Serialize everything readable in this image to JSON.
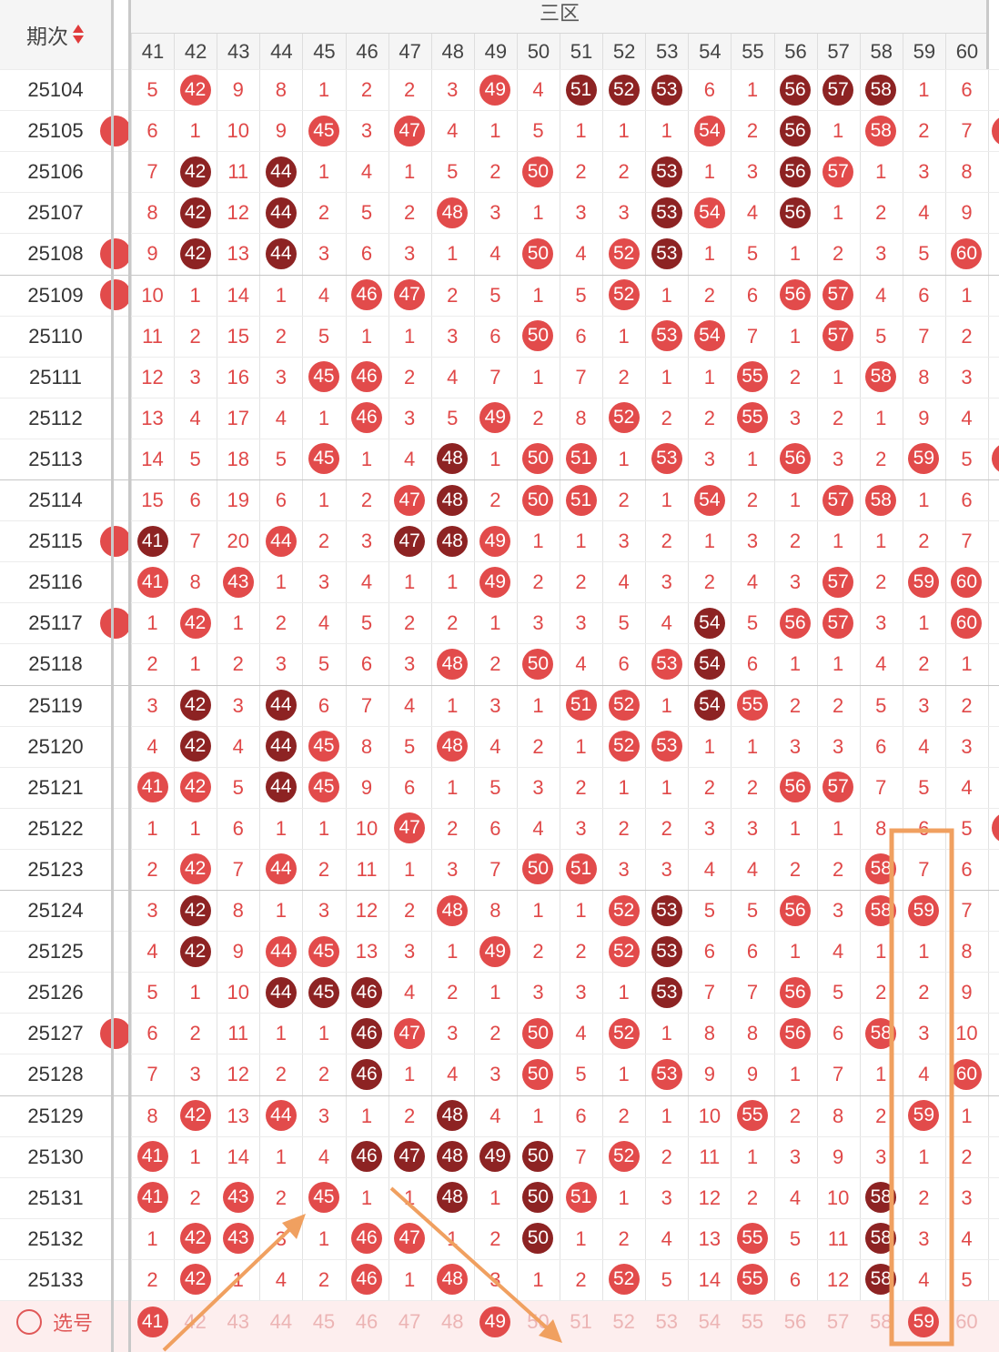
{
  "header": {
    "period_label": "期次",
    "zone_title": "三区",
    "columns": [
      "41",
      "42",
      "43",
      "44",
      "45",
      "46",
      "47",
      "48",
      "49",
      "50",
      "51",
      "52",
      "53",
      "54",
      "55",
      "56",
      "57",
      "58",
      "59",
      "60"
    ]
  },
  "colors": {
    "light_ball": "#e24b4b",
    "dark_ball": "#8d2323",
    "miss_text": "#e04848",
    "highlight": "#f0a060"
  },
  "rows": [
    {
      "period": "25104",
      "cells": [
        "5",
        "42",
        "9",
        "8",
        "1",
        "2",
        "2",
        "3",
        "49",
        "4",
        "51",
        "52",
        "53",
        "6",
        "1",
        "56",
        "57",
        "58",
        "1",
        "6"
      ],
      "dark": [
        "51",
        "52",
        "53",
        "56",
        "57",
        "58"
      ]
    },
    {
      "period": "25105",
      "cells": [
        "6",
        "1",
        "10",
        "9",
        "45",
        "3",
        "47",
        "4",
        "1",
        "5",
        "1",
        "1",
        "1",
        "54",
        "2",
        "56",
        "1",
        "58",
        "2",
        "7"
      ],
      "dark": [
        "56"
      ]
    },
    {
      "period": "25106",
      "cells": [
        "7",
        "42",
        "11",
        "44",
        "1",
        "4",
        "1",
        "5",
        "2",
        "50",
        "2",
        "2",
        "53",
        "1",
        "3",
        "56",
        "57",
        "1",
        "3",
        "8"
      ],
      "dark": [
        "42",
        "44",
        "53",
        "56"
      ]
    },
    {
      "period": "25107",
      "cells": [
        "8",
        "42",
        "12",
        "44",
        "2",
        "5",
        "2",
        "48",
        "3",
        "1",
        "3",
        "3",
        "53",
        "54",
        "4",
        "56",
        "1",
        "2",
        "4",
        "9"
      ],
      "dark": [
        "42",
        "44",
        "53",
        "56"
      ]
    },
    {
      "period": "25108",
      "cells": [
        "9",
        "42",
        "13",
        "44",
        "3",
        "6",
        "3",
        "1",
        "4",
        "50",
        "4",
        "52",
        "53",
        "1",
        "5",
        "1",
        "2",
        "3",
        "5",
        "60"
      ],
      "dark": [
        "42",
        "44",
        "53"
      ]
    },
    {
      "period": "25109",
      "cells": [
        "10",
        "1",
        "14",
        "1",
        "4",
        "46",
        "47",
        "2",
        "5",
        "1",
        "5",
        "52",
        "1",
        "2",
        "6",
        "56",
        "57",
        "4",
        "6",
        "1"
      ],
      "dark": []
    },
    {
      "period": "25110",
      "cells": [
        "11",
        "2",
        "15",
        "2",
        "5",
        "1",
        "1",
        "3",
        "6",
        "50",
        "6",
        "1",
        "53",
        "54",
        "7",
        "1",
        "57",
        "5",
        "7",
        "2"
      ],
      "dark": []
    },
    {
      "period": "25111",
      "cells": [
        "12",
        "3",
        "16",
        "3",
        "45",
        "46",
        "2",
        "4",
        "7",
        "1",
        "7",
        "2",
        "1",
        "1",
        "55",
        "2",
        "1",
        "58",
        "8",
        "3"
      ],
      "dark": []
    },
    {
      "period": "25112",
      "cells": [
        "13",
        "4",
        "17",
        "4",
        "1",
        "46",
        "3",
        "5",
        "49",
        "2",
        "8",
        "52",
        "2",
        "2",
        "55",
        "3",
        "2",
        "1",
        "9",
        "4"
      ],
      "dark": []
    },
    {
      "period": "25113",
      "cells": [
        "14",
        "5",
        "18",
        "5",
        "45",
        "1",
        "4",
        "48",
        "1",
        "50",
        "51",
        "1",
        "53",
        "3",
        "1",
        "56",
        "3",
        "2",
        "59",
        "5"
      ],
      "dark": [
        "48"
      ]
    },
    {
      "period": "25114",
      "cells": [
        "15",
        "6",
        "19",
        "6",
        "1",
        "2",
        "47",
        "48",
        "2",
        "50",
        "51",
        "2",
        "1",
        "54",
        "2",
        "1",
        "57",
        "58",
        "1",
        "6"
      ],
      "dark": [
        "48"
      ]
    },
    {
      "period": "25115",
      "cells": [
        "41",
        "7",
        "20",
        "44",
        "2",
        "3",
        "47",
        "48",
        "49",
        "1",
        "1",
        "3",
        "2",
        "1",
        "3",
        "2",
        "1",
        "1",
        "2",
        "7"
      ],
      "dark": [
        "41",
        "47",
        "48"
      ]
    },
    {
      "period": "25116",
      "cells": [
        "41",
        "8",
        "43",
        "1",
        "3",
        "4",
        "1",
        "1",
        "49",
        "2",
        "2",
        "4",
        "3",
        "2",
        "4",
        "3",
        "57",
        "2",
        "59",
        "60"
      ],
      "dark": []
    },
    {
      "period": "25117",
      "cells": [
        "1",
        "42",
        "1",
        "2",
        "4",
        "5",
        "2",
        "2",
        "1",
        "3",
        "3",
        "5",
        "4",
        "54",
        "5",
        "56",
        "57",
        "3",
        "1",
        "60"
      ],
      "dark": [
        "54"
      ]
    },
    {
      "period": "25118",
      "cells": [
        "2",
        "1",
        "2",
        "3",
        "5",
        "6",
        "3",
        "48",
        "2",
        "50",
        "4",
        "6",
        "53",
        "54",
        "6",
        "1",
        "1",
        "4",
        "2",
        "1"
      ],
      "dark": [
        "54"
      ]
    },
    {
      "period": "25119",
      "cells": [
        "3",
        "42",
        "3",
        "44",
        "6",
        "7",
        "4",
        "1",
        "3",
        "1",
        "51",
        "52",
        "1",
        "54",
        "55",
        "2",
        "2",
        "5",
        "3",
        "2"
      ],
      "dark": [
        "42",
        "44",
        "54"
      ]
    },
    {
      "period": "25120",
      "cells": [
        "4",
        "42",
        "4",
        "44",
        "45",
        "8",
        "5",
        "48",
        "4",
        "2",
        "1",
        "52",
        "53",
        "1",
        "1",
        "3",
        "3",
        "6",
        "4",
        "3"
      ],
      "dark": [
        "42",
        "44"
      ]
    },
    {
      "period": "25121",
      "cells": [
        "41",
        "42",
        "5",
        "44",
        "45",
        "9",
        "6",
        "1",
        "5",
        "3",
        "2",
        "1",
        "1",
        "2",
        "2",
        "56",
        "57",
        "7",
        "5",
        "4"
      ],
      "dark": [
        "44"
      ]
    },
    {
      "period": "25122",
      "cells": [
        "1",
        "1",
        "6",
        "1",
        "1",
        "10",
        "47",
        "2",
        "6",
        "4",
        "3",
        "2",
        "2",
        "3",
        "3",
        "1",
        "1",
        "8",
        "6",
        "5"
      ],
      "dark": []
    },
    {
      "period": "25123",
      "cells": [
        "2",
        "42",
        "7",
        "44",
        "2",
        "11",
        "1",
        "3",
        "7",
        "50",
        "51",
        "3",
        "3",
        "4",
        "4",
        "2",
        "2",
        "58",
        "7",
        "6"
      ],
      "dark": []
    },
    {
      "period": "25124",
      "cells": [
        "3",
        "42",
        "8",
        "1",
        "3",
        "12",
        "2",
        "48",
        "8",
        "1",
        "1",
        "52",
        "53",
        "5",
        "5",
        "56",
        "3",
        "58",
        "59",
        "7"
      ],
      "dark": [
        "42",
        "53"
      ]
    },
    {
      "period": "25125",
      "cells": [
        "4",
        "42",
        "9",
        "44",
        "45",
        "13",
        "3",
        "1",
        "49",
        "2",
        "2",
        "52",
        "53",
        "6",
        "6",
        "1",
        "4",
        "1",
        "1",
        "8"
      ],
      "dark": [
        "42",
        "53"
      ]
    },
    {
      "period": "25126",
      "cells": [
        "5",
        "1",
        "10",
        "44",
        "45",
        "46",
        "4",
        "2",
        "1",
        "3",
        "3",
        "1",
        "53",
        "7",
        "7",
        "56",
        "5",
        "2",
        "2",
        "9"
      ],
      "dark": [
        "44",
        "45",
        "46",
        "53"
      ]
    },
    {
      "period": "25127",
      "cells": [
        "6",
        "2",
        "11",
        "1",
        "1",
        "46",
        "47",
        "3",
        "2",
        "50",
        "4",
        "52",
        "1",
        "8",
        "8",
        "56",
        "6",
        "58",
        "3",
        "10"
      ],
      "dark": [
        "46"
      ]
    },
    {
      "period": "25128",
      "cells": [
        "7",
        "3",
        "12",
        "2",
        "2",
        "46",
        "1",
        "4",
        "3",
        "50",
        "5",
        "1",
        "53",
        "9",
        "9",
        "1",
        "7",
        "1",
        "4",
        "60"
      ],
      "dark": [
        "46"
      ]
    },
    {
      "period": "25129",
      "cells": [
        "8",
        "42",
        "13",
        "44",
        "3",
        "1",
        "2",
        "48",
        "4",
        "1",
        "6",
        "2",
        "1",
        "10",
        "55",
        "2",
        "8",
        "2",
        "59",
        "1"
      ],
      "dark": [
        "48"
      ]
    },
    {
      "period": "25130",
      "cells": [
        "41",
        "1",
        "14",
        "1",
        "4",
        "46",
        "47",
        "48",
        "49",
        "50",
        "7",
        "52",
        "2",
        "11",
        "1",
        "3",
        "9",
        "3",
        "1",
        "2"
      ],
      "dark": [
        "46",
        "47",
        "48",
        "49",
        "50"
      ]
    },
    {
      "period": "25131",
      "cells": [
        "41",
        "2",
        "43",
        "2",
        "45",
        "1",
        "1",
        "48",
        "1",
        "50",
        "51",
        "1",
        "3",
        "12",
        "2",
        "4",
        "10",
        "58",
        "2",
        "3"
      ],
      "dark": [
        "48",
        "50",
        "58"
      ]
    },
    {
      "period": "25132",
      "cells": [
        "1",
        "42",
        "43",
        "3",
        "1",
        "46",
        "47",
        "1",
        "2",
        "50",
        "1",
        "2",
        "4",
        "13",
        "55",
        "5",
        "11",
        "58",
        "3",
        "4"
      ],
      "dark": [
        "50",
        "58"
      ]
    },
    {
      "period": "25133",
      "cells": [
        "2",
        "42",
        "1",
        "4",
        "2",
        "46",
        "1",
        "48",
        "3",
        "1",
        "2",
        "52",
        "5",
        "14",
        "55",
        "6",
        "12",
        "58",
        "4",
        "5"
      ],
      "dark": [
        "58"
      ]
    }
  ],
  "edge_left_partial": [
    false,
    true,
    false,
    false,
    true,
    true,
    false,
    false,
    false,
    false,
    false,
    true,
    false,
    true,
    false,
    false,
    false,
    false,
    false,
    false,
    false,
    false,
    false,
    true,
    false,
    false,
    false,
    false,
    false,
    false
  ],
  "edge_right_partial": [
    false,
    true,
    false,
    false,
    false,
    false,
    false,
    false,
    false,
    true,
    false,
    false,
    false,
    false,
    false,
    false,
    false,
    false,
    true,
    false,
    false,
    false,
    false,
    false,
    false,
    false,
    false,
    false,
    false,
    false
  ],
  "select_row": {
    "label": "选号",
    "selected": [
      "41",
      "49",
      "59"
    ]
  }
}
